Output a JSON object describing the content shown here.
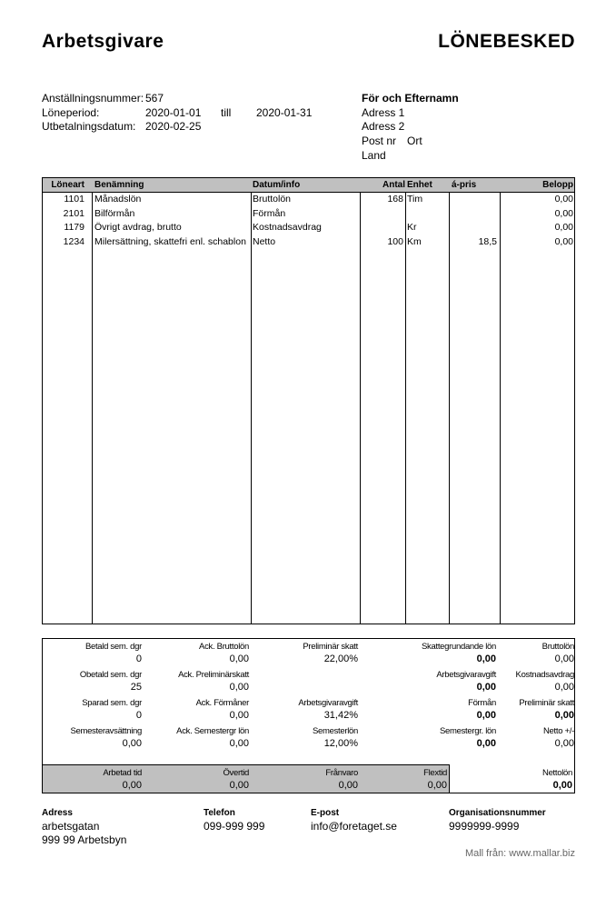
{
  "header": {
    "employer": "Arbetsgivare",
    "title": "LÖNEBESKED"
  },
  "info": {
    "employee_no_label": "Anställningsnummer:",
    "employee_no": "567",
    "period_label": "Löneperiod:",
    "period_from": "2020-01-01",
    "till_label": "till",
    "period_to": "2020-01-31",
    "payday_label": "Utbetalningsdatum:",
    "payday": "2020-02-25"
  },
  "recipient": {
    "name": "För och Efternamn",
    "address1": "Adress 1",
    "address2": "Adress 2",
    "postnr": "Post nr",
    "city": "Ort",
    "country": "Land"
  },
  "table": {
    "columns": [
      "Löneart",
      "Benämning",
      "Datum/info",
      "Antal",
      "Enhet",
      "á-pris",
      "Belopp"
    ],
    "rows": [
      {
        "code": "1101",
        "name": "Månadslön",
        "info": "Bruttolön",
        "qty": "168",
        "unit": "Tim",
        "price": "",
        "amount": "0,00"
      },
      {
        "code": "2101",
        "name": "Bilförmån",
        "info": "Förmån",
        "qty": "",
        "unit": "",
        "price": "",
        "amount": "0,00"
      },
      {
        "code": "1179",
        "name": "Övrigt avdrag, brutto",
        "info": "Kostnadsavdrag",
        "qty": "",
        "unit": "Kr",
        "price": "",
        "amount": "0,00"
      },
      {
        "code": "1234",
        "name": "Milersättning, skattefri enl. schablon",
        "info": "Netto",
        "qty": "100",
        "unit": "Km",
        "price": "18,5",
        "amount": "0,00"
      }
    ]
  },
  "summary": {
    "c1": [
      {
        "label": "Betald sem. dgr",
        "value": "0"
      },
      {
        "label": "Obetald sem. dgr",
        "value": "25"
      },
      {
        "label": "Sparad sem. dgr",
        "value": "0"
      },
      {
        "label": "Semesteravsättning",
        "value": "0,00"
      }
    ],
    "c2": [
      {
        "label": "Ack. Bruttolön",
        "value": "0,00"
      },
      {
        "label": "Ack. Preliminärskatt",
        "value": "0,00"
      },
      {
        "label": "Ack. Förmåner",
        "value": "0,00"
      },
      {
        "label": "Ack. Semestergr lön",
        "value": "0,00"
      }
    ],
    "c3": [
      {
        "label": "Preliminär skatt",
        "value": "22,00%"
      },
      {
        "label": "",
        "value": ""
      },
      {
        "label": "Arbetsgivaravgift",
        "value": "31,42%"
      },
      {
        "label": "Semesterlön",
        "value": "12,00%"
      }
    ],
    "c4": [
      {
        "label": "Skattegrundande lön",
        "value": "0,00"
      },
      {
        "label": "Arbetsgivaravgift",
        "value": "0,00"
      },
      {
        "label": "Förmån",
        "value": "0,00"
      },
      {
        "label": "Semestergr. lön",
        "value": "0,00"
      }
    ],
    "c5": [
      {
        "label": "Bruttolön",
        "value": "0,00"
      },
      {
        "label": "Kostnadsavdrag",
        "value": "0,00"
      },
      {
        "label": "Preliminär skatt",
        "value": "0,00"
      },
      {
        "label": "Netto +/-",
        "value": "0,00"
      }
    ],
    "time": [
      {
        "label": "Arbetad tid",
        "value": "0,00"
      },
      {
        "label": "Övertid",
        "value": "0,00"
      },
      {
        "label": "Frånvaro",
        "value": "0,00"
      },
      {
        "label": "Flextid",
        "value": "0,00"
      }
    ],
    "net": {
      "label": "Nettolön",
      "value": "0,00"
    }
  },
  "footer": {
    "address_label": "Adress",
    "address1": "arbetsgatan",
    "address2": "999 99 Arbetsbyn",
    "phone_label": "Telefon",
    "phone": "099-999 999",
    "email_label": "E-post",
    "email": "info@foretaget.se",
    "org_label": "Organisationsnummer",
    "org": "9999999-9999",
    "credit": "Mall från: www.mallar.biz"
  }
}
